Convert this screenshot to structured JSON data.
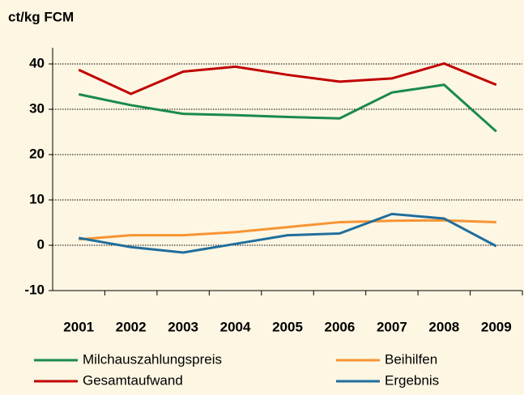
{
  "chart_data": {
    "type": "line",
    "y_label": "ct/kg FCM",
    "categories": [
      "2001",
      "2002",
      "2003",
      "2004",
      "2005",
      "2006",
      "2007",
      "2008",
      "2009"
    ],
    "series": [
      {
        "name": "Milchauszahlungspreis",
        "color": "#1a8a4a",
        "values": [
          33.3,
          30.9,
          29.0,
          28.7,
          28.3,
          28.0,
          33.7,
          35.4,
          25.1
        ]
      },
      {
        "name": "Beihilfen",
        "color": "#f79433",
        "values": [
          1.3,
          2.2,
          2.2,
          2.9,
          4.0,
          5.1,
          5.4,
          5.5,
          5.1
        ]
      },
      {
        "name": "Gesamtaufwand",
        "color": "#c00000",
        "values": [
          38.7,
          33.4,
          38.3,
          39.4,
          37.6,
          36.1,
          36.8,
          40.1,
          35.4
        ]
      },
      {
        "name": "Ergebnis",
        "color": "#1f6e9c",
        "values": [
          1.6,
          -0.4,
          -1.6,
          0.3,
          2.2,
          2.6,
          6.9,
          5.9,
          -0.2
        ]
      }
    ],
    "ylim": [
      -10,
      40
    ],
    "yticks": [
      -10,
      0,
      10,
      20,
      30,
      40
    ],
    "grid": true
  }
}
